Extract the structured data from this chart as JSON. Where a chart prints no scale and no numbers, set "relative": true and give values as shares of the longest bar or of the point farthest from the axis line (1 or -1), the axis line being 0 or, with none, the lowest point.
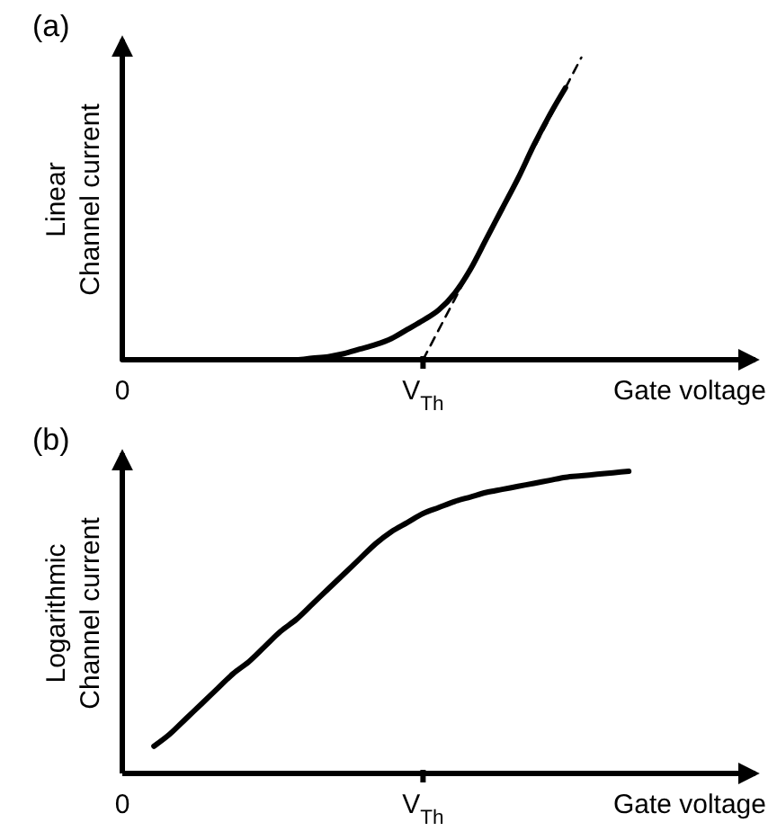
{
  "chart_data": [
    {
      "type": "line",
      "title": "(a)",
      "ylabel": "Linear\nChannel current",
      "xlabel": "Gate voltage",
      "relative": true,
      "categories": [
        "0",
        null,
        null,
        null,
        null,
        null,
        null,
        null,
        null,
        null,
        null,
        null,
        null,
        null,
        null,
        null,
        null,
        null,
        null,
        "V$_{Th}$",
        null,
        null,
        null,
        null,
        null,
        null,
        null,
        null,
        null,
        null,
        null,
        null,
        null,
        null,
        null,
        null,
        null,
        null,
        null,
        null,
        null
      ],
      "series": [
        {
          "color": "#000000",
          "values": [
            0,
            0,
            0,
            0,
            0,
            0,
            0,
            0,
            0,
            0,
            0,
            0,
            0.005,
            0.01,
            0.02,
            0.035,
            0.05,
            0.07,
            0.1,
            0.13,
            0.165,
            0.22,
            0.3,
            0.4,
            0.5,
            0.6,
            0.71,
            0.81,
            0.9,
            null,
            null,
            null,
            null,
            null,
            null,
            null,
            null,
            null,
            null,
            null,
            null
          ],
          "line_style": "solid"
        },
        {
          "color": "#000000",
          "values": [
            null,
            null,
            null,
            null,
            null,
            null,
            null,
            null,
            null,
            null,
            null,
            null,
            null,
            null,
            null,
            null,
            null,
            null,
            null,
            0,
            0.1,
            0.2,
            0.3,
            0.4,
            0.5,
            0.6,
            0.7,
            0.8,
            0.9,
            1,
            null,
            null,
            null,
            null,
            null,
            null,
            null,
            null,
            null,
            null,
            null
          ],
          "line_style": "dashed"
        }
      ]
    },
    {
      "type": "line",
      "title": "(b)",
      "ylabel": "Logarithmic\nChannel current",
      "xlabel": "Gate voltage",
      "relative": true,
      "categories": [
        "0",
        null,
        null,
        null,
        null,
        null,
        null,
        null,
        null,
        null,
        null,
        null,
        null,
        null,
        null,
        null,
        null,
        null,
        null,
        "V$_{Th}$",
        null,
        null,
        null,
        null,
        null,
        null,
        null,
        null,
        null,
        null,
        null,
        null,
        null,
        null,
        null,
        null,
        null,
        null,
        null,
        null,
        null
      ],
      "series": [
        {
          "color": "#000000",
          "values": [
            null,
            null,
            0.09,
            0.13,
            0.18,
            0.23,
            0.28,
            0.33,
            0.37,
            0.42,
            0.47,
            0.51,
            0.56,
            0.61,
            0.66,
            0.71,
            0.76,
            0.8,
            0.83,
            0.86,
            0.88,
            0.9,
            0.915,
            0.93,
            0.94,
            0.95,
            0.96,
            0.97,
            0.98,
            0.985,
            0.99,
            0.995,
            1,
            null,
            null,
            null,
            null,
            null,
            null,
            null,
            null
          ],
          "line_style": "solid"
        }
      ]
    }
  ]
}
